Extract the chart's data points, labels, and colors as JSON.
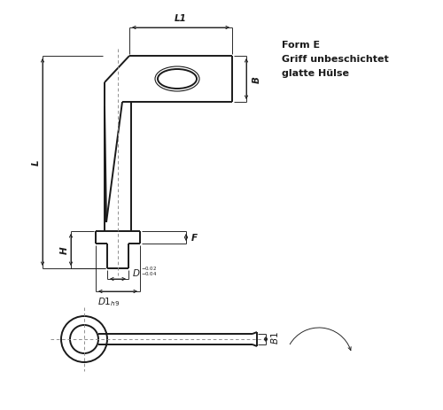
{
  "bg_color": "#ffffff",
  "line_color": "#1a1a1a",
  "dim_color": "#1a1a1a",
  "title_text": [
    "Form E",
    "Griff unbeschichtet",
    "glatte Hülse"
  ],
  "lw_thick": 1.4,
  "lw_thin": 0.8,
  "lw_dim": 0.65,
  "font_size_dim": 7.5,
  "font_size_label": 8.0
}
